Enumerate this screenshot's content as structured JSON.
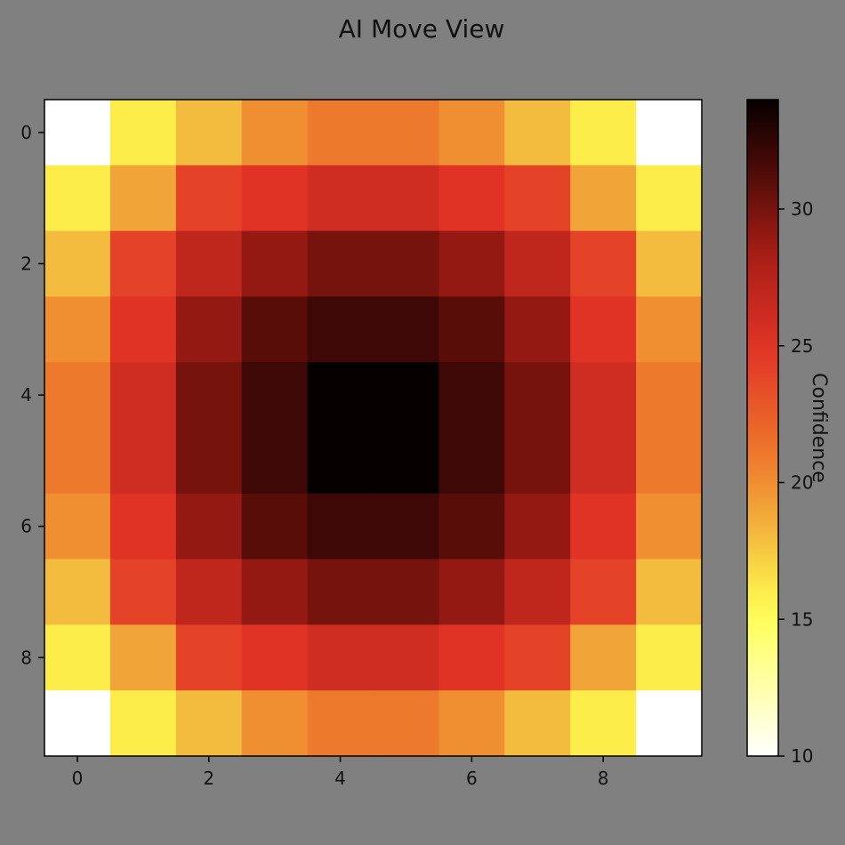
{
  "chart_data": {
    "type": "heatmap",
    "title": "AI Move View",
    "colorbar_label": "Confidence",
    "colormap": "hot_r",
    "color_range": [
      10,
      34
    ],
    "colorbar_ticks": [
      10,
      15,
      20,
      25,
      30
    ],
    "x_ticks": [
      0,
      2,
      4,
      6,
      8
    ],
    "y_ticks": [
      0,
      2,
      4,
      6,
      8
    ],
    "rows": 10,
    "cols": 10,
    "values": [
      [
        10,
        16,
        18,
        20,
        21,
        21,
        20,
        18,
        16,
        10
      ],
      [
        16,
        19,
        24,
        25,
        26,
        26,
        25,
        24,
        19,
        16
      ],
      [
        18,
        24,
        27,
        29,
        30,
        30,
        29,
        27,
        24,
        18
      ],
      [
        20,
        25,
        29,
        31,
        32,
        32,
        31,
        29,
        25,
        20
      ],
      [
        21,
        26,
        30,
        32,
        34,
        34,
        32,
        30,
        26,
        21
      ],
      [
        21,
        26,
        30,
        32,
        34,
        34,
        32,
        30,
        26,
        21
      ],
      [
        20,
        25,
        29,
        31,
        32,
        32,
        31,
        29,
        25,
        20
      ],
      [
        18,
        24,
        27,
        29,
        30,
        30,
        29,
        27,
        24,
        18
      ],
      [
        16,
        19,
        24,
        25,
        26,
        26,
        25,
        24,
        19,
        16
      ],
      [
        10,
        16,
        18,
        20,
        21,
        21,
        20,
        18,
        16,
        10
      ]
    ]
  }
}
